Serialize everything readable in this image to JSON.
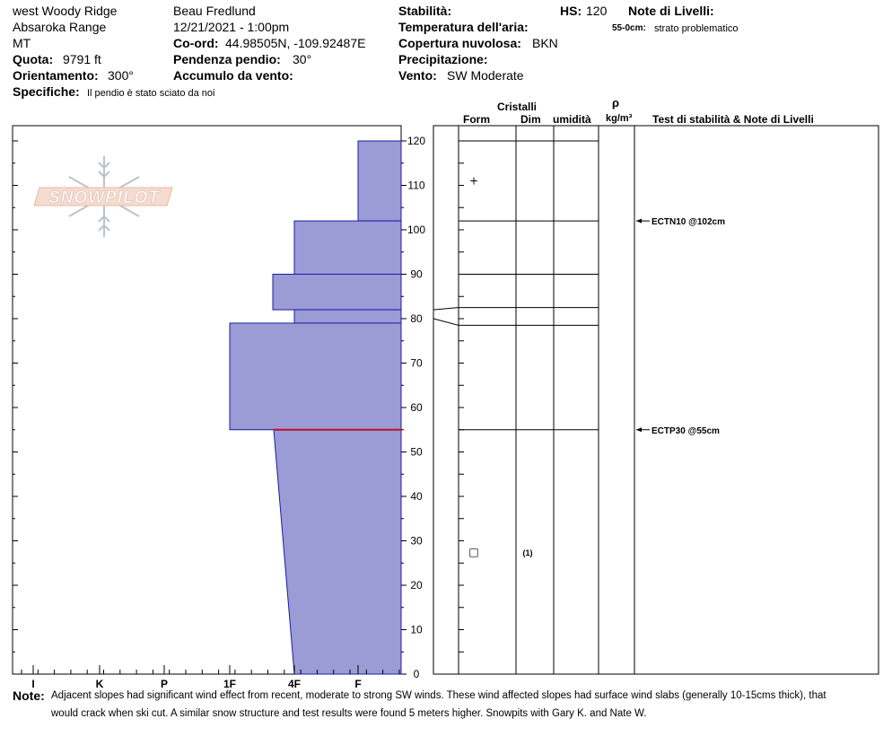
{
  "header": {
    "location": "west Woody Ridge",
    "range": "Absaroka Range",
    "state": "MT",
    "elevation_label": "Quota:",
    "elevation_value": "9791 ft",
    "aspect_label": "Orientamento:",
    "aspect_value": "300°",
    "specifics_label": "Specifiche:",
    "specifics_value": "Il pendio è stato sciato da noi",
    "observer": "Beau  Fredlund",
    "datetime": "12/21/2021 - 1:00pm",
    "coord_label": "Co-ord:",
    "coord_value": "44.98505N, -109.92487E",
    "slope_label": "Pendenza pendio:",
    "slope_value": "30°",
    "wind_loading_label": "Accumulo da vento:",
    "stability_label": "Stabilità:",
    "air_temp_label": "Temperatura dell'aria:",
    "sky_label": "Copertura nuvolosa:",
    "sky_value": "BKN",
    "precip_label": "Precipitazione:",
    "wind_label": "Vento:",
    "wind_value": "SW Moderate",
    "hs_label": "HS:",
    "hs_value": "120",
    "layer_notes_label": "Note di Livelli:",
    "layer_note_depth": "55-0cm:",
    "layer_note_text": "strato problematico"
  },
  "logo_text": "SNOWPILOT",
  "columns": {
    "crystals": "Cristalli",
    "form": "Form",
    "dim": "Dim",
    "moisture": "umidità",
    "rho": "ρ",
    "density_unit": "kg/m³",
    "tests_notes": "Test di stabilità & Note di Livelli"
  },
  "chart_data": {
    "type": "bar",
    "subtype": "snow-profile-hardness",
    "ylabel": "",
    "ylim": [
      0,
      120
    ],
    "yticks": [
      0,
      10,
      20,
      30,
      40,
      50,
      60,
      70,
      80,
      90,
      100,
      110,
      120
    ],
    "hardness_categories": [
      "I",
      "K",
      "P",
      "1F",
      "4F",
      "F"
    ],
    "layers": [
      {
        "top": 120,
        "bottom": 102,
        "hardness": "F"
      },
      {
        "top": 102,
        "bottom": 90,
        "hardness": "4F"
      },
      {
        "top": 90,
        "bottom": 82,
        "hardness": "4F+"
      },
      {
        "top": 82,
        "bottom": 79,
        "hardness": "4F"
      },
      {
        "top": 79,
        "bottom": 55,
        "hardness": "1F"
      },
      {
        "top": 55,
        "bottom": 0,
        "hardness_top": "F-",
        "hardness_bottom": "4F"
      }
    ],
    "layer_boundaries": [
      120,
      102,
      90,
      82.5,
      78.5,
      55
    ],
    "problem_layer_depth": 55,
    "crystal_symbols": [
      {
        "depth": 111,
        "symbol": "+"
      },
      {
        "depth": 27.5,
        "symbol": "□",
        "dim_label": "(1)"
      }
    ],
    "stability_tests": [
      {
        "depth": 102,
        "label": "ECTN10 @102cm"
      },
      {
        "depth": 55,
        "label": "ECTP30 @55cm"
      }
    ]
  },
  "note": {
    "label": "Note:",
    "line1": "Adjacent slopes had significant wind effect from recent, moderate to strong SW winds.  These wind affected slopes had surface wind slabs (generally 10-15cms thick), that",
    "line2": "would crack when ski cut.  A similar snow structure and test results were found 5 meters higher.  Snowpits with Gary K. and Nate W."
  },
  "colors": {
    "bar_fill": "#9b9bd6",
    "bar_stroke": "#1c1ca8",
    "problem_line": "#c0102a"
  }
}
